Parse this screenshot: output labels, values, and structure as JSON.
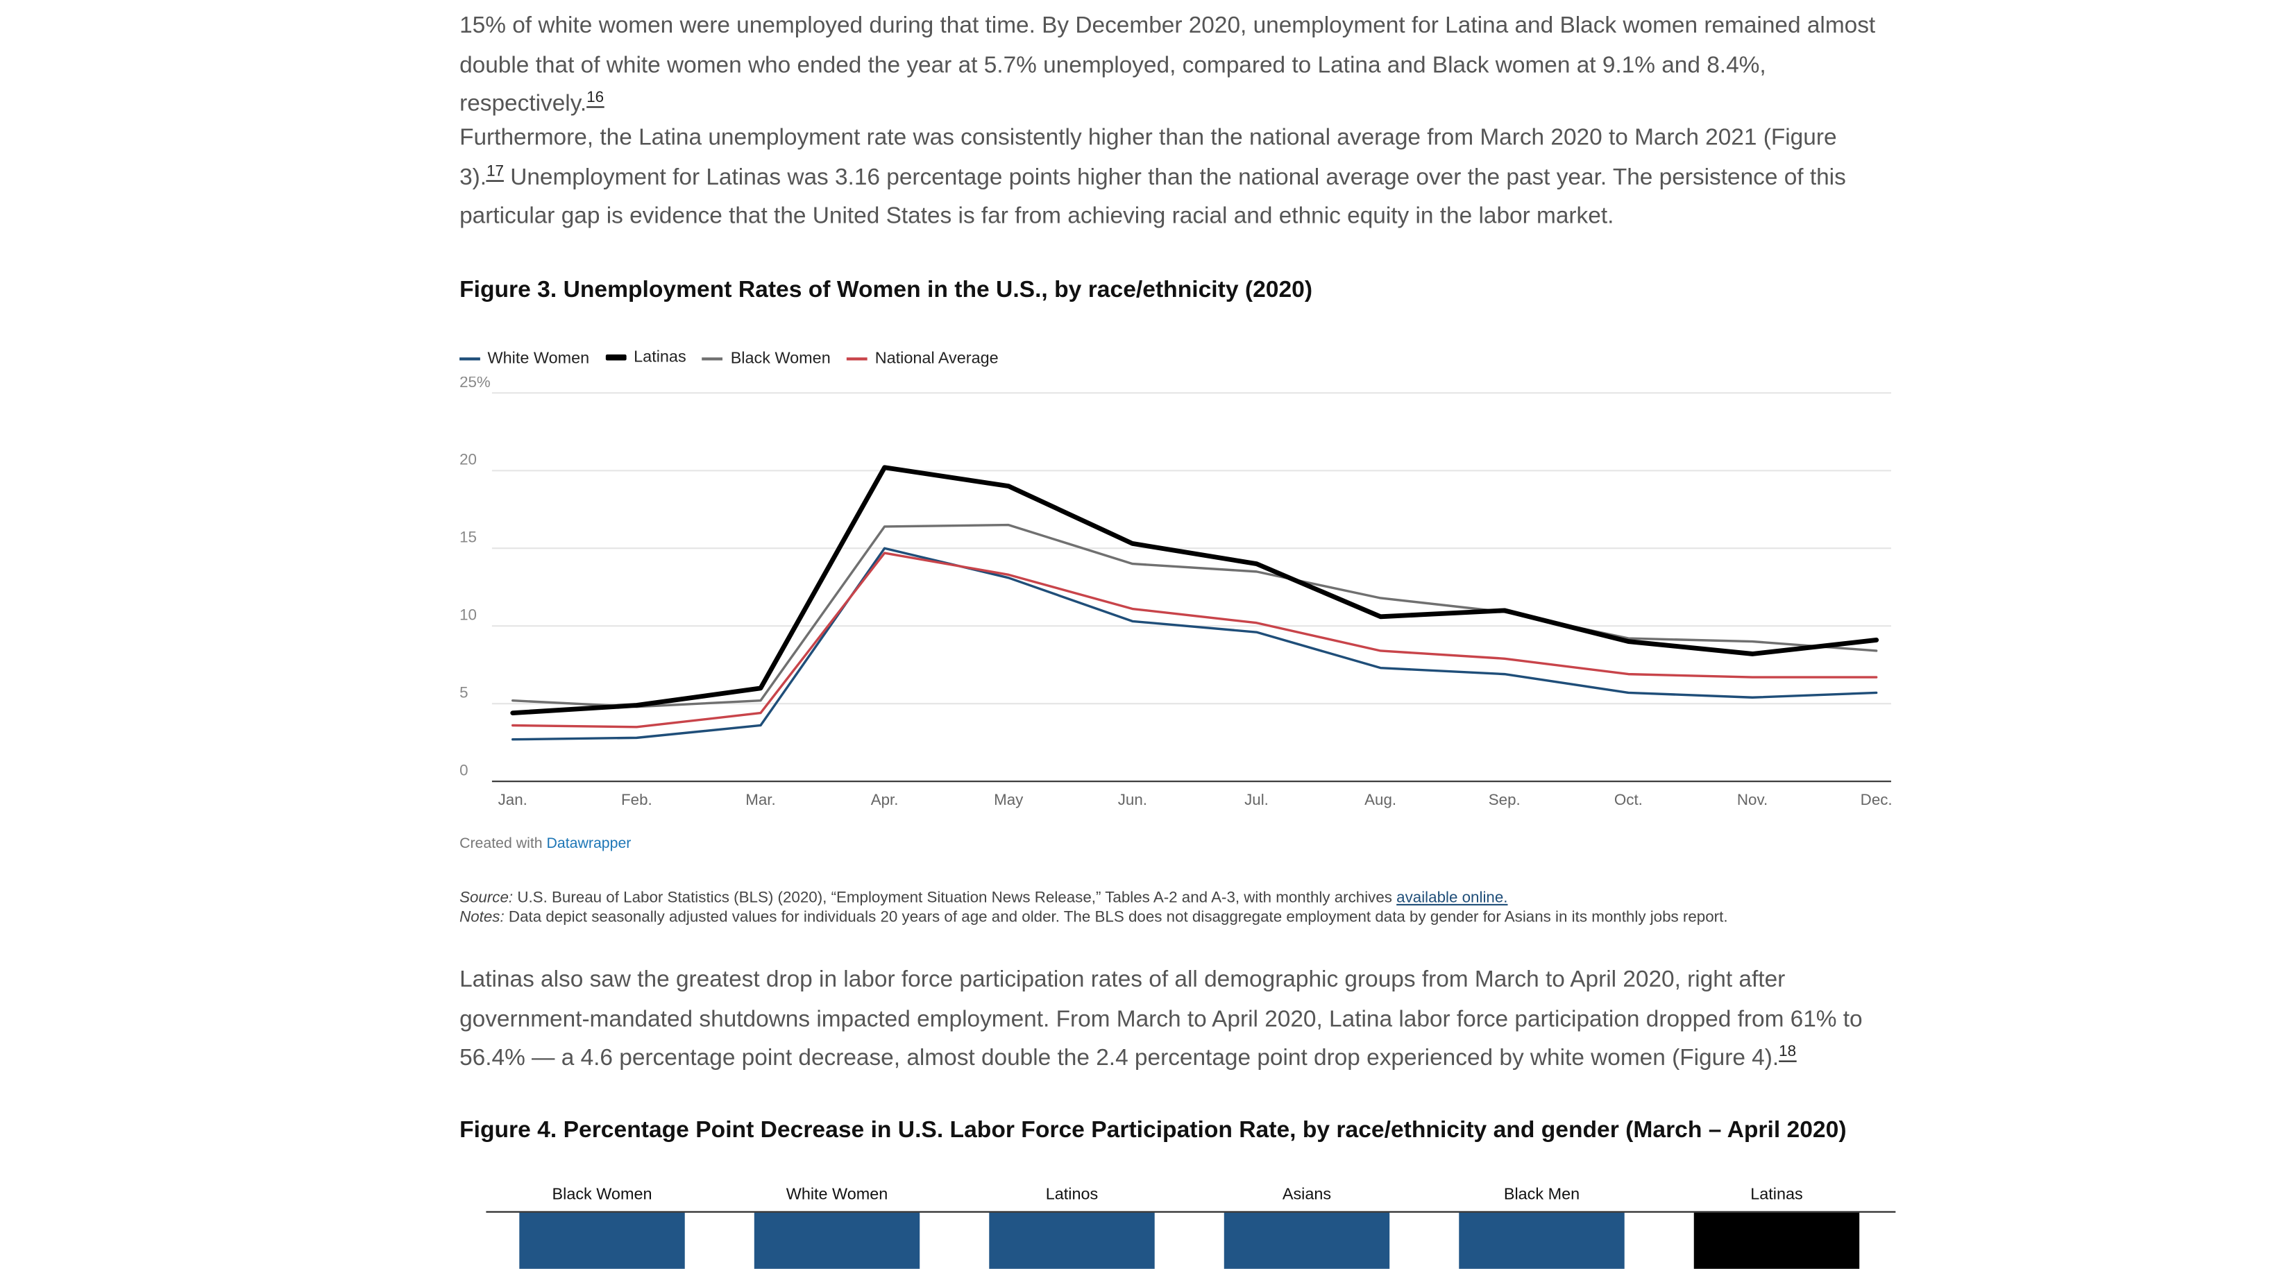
{
  "paragraphs": {
    "p1": {
      "line1": "15% of white women were unemployed during that time. By December 2020, unemployment for Latina and Black women remained almost double that of white women who ended the year at 5.7% unemployed, compared to Latina and Black women at 9.1% and 8.4%, respectively.",
      "fn": "16"
    },
    "p2": {
      "text_a": "Furthermore, the Latina unemployment rate was consistently higher than the national average from March 2020 to March 2021 (Figure 3).",
      "fn": "17",
      "text_b": " Unemployment for Latinas was 3.16 percentage points higher than the national average over the past year. The persistence of this particular gap is evidence that the United States is far from achieving racial and ethnic equity in the labor market."
    },
    "p3": {
      "text": "Latinas also saw the greatest drop in labor force participation rates of all demographic groups from March to April 2020, right after government-mandated shutdowns impacted employment. From March to April 2020, Latina labor force participation dropped from 61% to 56.4% — a 4.6 percentage point decrease, almost double the 2.4 percentage point drop experienced by white women (Figure 4).",
      "fn": "18"
    }
  },
  "figure3": {
    "title": "Figure 3. Unemployment Rates of Women in the U.S., by race/ethnicity (2020)",
    "credit_prefix": "Created with ",
    "credit_link": "Datawrapper",
    "source_label": "Source:",
    "source_text": " U.S. Bureau of Labor Statistics (BLS) (2020), “Employment Situation News Release,” Tables A-2 and A-3, with monthly archives ",
    "source_link": "available online.",
    "notes_label": "Notes:",
    "notes_text": " Data depict seasonally adjusted values for individuals 20 years of age and older. The BLS does not disaggregate employment data by gender for Asians in its monthly jobs report."
  },
  "figure4": {
    "title": "Figure 4. Percentage Point Decrease in U.S. Labor Force Participation Rate, by race/ethnicity and gender (March – April 2020)"
  },
  "colors": {
    "white_women": "#1f4e79",
    "latinas": "#000000",
    "black_women": "#707070",
    "national_average": "#c8444a",
    "bar_default": "#215586",
    "bar_highlight": "#000000"
  },
  "chart_data": [
    {
      "type": "line",
      "title": "Figure 3. Unemployment Rates of Women in the U.S., by race/ethnicity (2020)",
      "x": [
        "Jan.",
        "Feb.",
        "Mar.",
        "Apr.",
        "May",
        "Jun.",
        "Jul.",
        "Aug.",
        "Sep.",
        "Oct.",
        "Nov.",
        "Dec."
      ],
      "y_ticks": [
        "0",
        "5",
        "10",
        "15",
        "20",
        "25%"
      ],
      "ylim": [
        0,
        25
      ],
      "grid": true,
      "legend_position": "top-left",
      "series": [
        {
          "name": "White Women",
          "values": [
            2.7,
            2.8,
            3.6,
            15.0,
            13.1,
            10.3,
            9.6,
            7.3,
            6.9,
            5.7,
            5.4,
            5.7
          ]
        },
        {
          "name": "Latinas",
          "values": [
            4.4,
            4.9,
            6.0,
            20.2,
            19.0,
            15.3,
            14.0,
            10.6,
            11.0,
            9.0,
            8.2,
            9.1
          ]
        },
        {
          "name": "Black Women",
          "values": [
            5.2,
            4.8,
            5.2,
            16.4,
            16.5,
            14.0,
            13.5,
            11.8,
            10.9,
            9.2,
            9.0,
            8.4
          ]
        },
        {
          "name": "National Average",
          "values": [
            3.6,
            3.5,
            4.4,
            14.7,
            13.3,
            11.1,
            10.2,
            8.4,
            7.9,
            6.9,
            6.7,
            6.7
          ]
        }
      ]
    },
    {
      "type": "bar",
      "title": "Figure 4. Percentage Point Decrease in U.S. Labor Force Participation Rate, by race/ethnicity and gender (March – April 2020)",
      "categories": [
        "Black Women",
        "White Women",
        "Latinos",
        "Asians",
        "Black Men",
        "Latinas"
      ],
      "highlight": "Latinas"
    }
  ]
}
